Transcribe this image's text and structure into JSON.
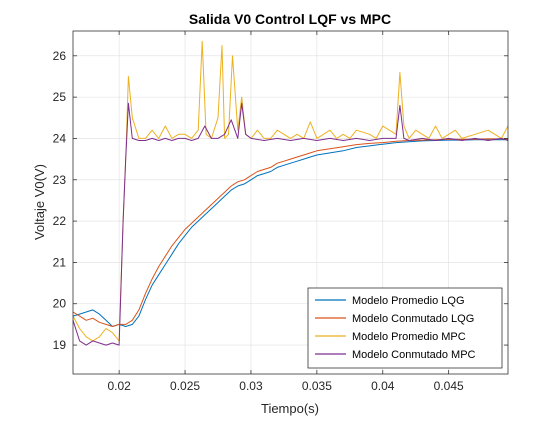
{
  "chart_data": {
    "type": "line",
    "title": "Salida V0 Control LQF vs MPC",
    "xlabel": "Tiempo(s)",
    "ylabel": "Voltaje V0(V)",
    "xlim": [
      0.0165,
      0.0495
    ],
    "ylim": [
      18.3,
      26.6
    ],
    "xticks": [
      0.02,
      0.025,
      0.03,
      0.035,
      0.04,
      0.045
    ],
    "xtick_labels": [
      "0.02",
      "0.025",
      "0.03",
      "0.035",
      "0.04",
      "0.045"
    ],
    "yticks": [
      19,
      20,
      21,
      22,
      23,
      24,
      25,
      26
    ],
    "ytick_labels": [
      "19",
      "20",
      "21",
      "22",
      "23",
      "24",
      "25",
      "26"
    ],
    "grid": true,
    "legend_position": "bottom-right",
    "series": [
      {
        "name": "Modelo Promedio LQG",
        "color": "#0072BD",
        "x": [
          0.0165,
          0.017,
          0.0175,
          0.018,
          0.0185,
          0.019,
          0.0195,
          0.02,
          0.0205,
          0.021,
          0.0215,
          0.022,
          0.0225,
          0.023,
          0.0235,
          0.024,
          0.0245,
          0.025,
          0.0255,
          0.026,
          0.0265,
          0.027,
          0.0275,
          0.028,
          0.0285,
          0.029,
          0.0295,
          0.03,
          0.0305,
          0.031,
          0.0315,
          0.032,
          0.0325,
          0.033,
          0.0335,
          0.034,
          0.0345,
          0.035,
          0.036,
          0.037,
          0.038,
          0.039,
          0.04,
          0.041,
          0.042,
          0.043,
          0.044,
          0.045,
          0.046,
          0.047,
          0.048,
          0.049,
          0.0495
        ],
        "y": [
          19.7,
          19.75,
          19.8,
          19.85,
          19.75,
          19.6,
          19.45,
          19.5,
          19.45,
          19.5,
          19.7,
          20.1,
          20.45,
          20.7,
          20.95,
          21.2,
          21.45,
          21.65,
          21.85,
          22.0,
          22.15,
          22.3,
          22.45,
          22.6,
          22.75,
          22.85,
          22.9,
          23.0,
          23.1,
          23.15,
          23.2,
          23.3,
          23.35,
          23.4,
          23.45,
          23.5,
          23.55,
          23.6,
          23.65,
          23.7,
          23.78,
          23.82,
          23.86,
          23.9,
          23.92,
          23.94,
          23.95,
          23.96,
          23.96,
          23.97,
          23.97,
          23.97,
          23.97
        ]
      },
      {
        "name": "Modelo Conmutado LQG",
        "color": "#D95319",
        "x": [
          0.0165,
          0.017,
          0.0175,
          0.018,
          0.0185,
          0.019,
          0.0195,
          0.02,
          0.0205,
          0.021,
          0.0215,
          0.022,
          0.0225,
          0.023,
          0.0235,
          0.024,
          0.0245,
          0.025,
          0.0255,
          0.026,
          0.0265,
          0.027,
          0.0275,
          0.028,
          0.0285,
          0.029,
          0.0295,
          0.03,
          0.0305,
          0.031,
          0.0315,
          0.032,
          0.0325,
          0.033,
          0.0335,
          0.034,
          0.0345,
          0.035,
          0.036,
          0.037,
          0.038,
          0.039,
          0.04,
          0.041,
          0.042,
          0.043,
          0.044,
          0.045,
          0.046,
          0.047,
          0.048,
          0.049,
          0.0495
        ],
        "y": [
          19.8,
          19.7,
          19.6,
          19.65,
          19.55,
          19.5,
          19.45,
          19.5,
          19.5,
          19.6,
          19.85,
          20.25,
          20.6,
          20.9,
          21.15,
          21.4,
          21.6,
          21.8,
          21.95,
          22.1,
          22.25,
          22.4,
          22.55,
          22.7,
          22.85,
          22.95,
          23.0,
          23.1,
          23.2,
          23.25,
          23.3,
          23.4,
          23.45,
          23.5,
          23.55,
          23.6,
          23.65,
          23.7,
          23.75,
          23.8,
          23.85,
          23.88,
          23.9,
          23.93,
          23.95,
          23.96,
          23.97,
          23.98,
          23.98,
          23.98,
          23.99,
          23.99,
          23.99
        ]
      },
      {
        "name": "Modelo Promedio MPC",
        "color": "#EDB120",
        "x": [
          0.0165,
          0.017,
          0.0175,
          0.018,
          0.0185,
          0.019,
          0.0195,
          0.02,
          0.0203,
          0.0205,
          0.0207,
          0.021,
          0.0215,
          0.022,
          0.0225,
          0.023,
          0.0235,
          0.024,
          0.0245,
          0.025,
          0.0255,
          0.026,
          0.0263,
          0.0266,
          0.027,
          0.0275,
          0.0278,
          0.028,
          0.0283,
          0.0286,
          0.029,
          0.0293,
          0.0296,
          0.03,
          0.0305,
          0.031,
          0.0315,
          0.032,
          0.0325,
          0.033,
          0.0335,
          0.034,
          0.0345,
          0.035,
          0.0355,
          0.036,
          0.0365,
          0.037,
          0.0375,
          0.038,
          0.039,
          0.0395,
          0.04,
          0.041,
          0.0413,
          0.0416,
          0.042,
          0.0425,
          0.043,
          0.0435,
          0.044,
          0.0445,
          0.045,
          0.0455,
          0.046,
          0.047,
          0.048,
          0.049,
          0.0495
        ],
        "y": [
          19.7,
          19.4,
          19.2,
          19.1,
          19.2,
          19.4,
          19.3,
          19.1,
          22.0,
          23.5,
          25.5,
          24.5,
          24.0,
          24.0,
          24.2,
          24.0,
          24.3,
          24.0,
          24.1,
          24.1,
          24.0,
          24.2,
          26.35,
          24.1,
          24.0,
          24.5,
          26.25,
          24.0,
          24.1,
          26.0,
          24.2,
          25.0,
          24.1,
          24.0,
          24.2,
          24.0,
          24.0,
          24.2,
          24.1,
          24.0,
          24.1,
          24.0,
          24.4,
          24.0,
          24.1,
          24.2,
          24.0,
          24.1,
          24.0,
          24.2,
          24.1,
          24.0,
          24.3,
          24.1,
          25.6,
          24.3,
          24.0,
          24.2,
          24.1,
          24.0,
          24.3,
          24.0,
          24.1,
          24.2,
          24.0,
          24.1,
          24.2,
          24.0,
          24.3
        ]
      },
      {
        "name": "Modelo Conmutado MPC",
        "color": "#7E2F8E",
        "x": [
          0.0165,
          0.017,
          0.0175,
          0.018,
          0.0185,
          0.019,
          0.0195,
          0.02,
          0.0203,
          0.0205,
          0.0207,
          0.021,
          0.0215,
          0.022,
          0.0225,
          0.023,
          0.0235,
          0.024,
          0.0245,
          0.025,
          0.0255,
          0.026,
          0.0265,
          0.027,
          0.0275,
          0.028,
          0.0285,
          0.029,
          0.0293,
          0.0296,
          0.03,
          0.031,
          0.032,
          0.033,
          0.034,
          0.035,
          0.036,
          0.037,
          0.038,
          0.039,
          0.04,
          0.041,
          0.0413,
          0.0416,
          0.042,
          0.043,
          0.044,
          0.045,
          0.046,
          0.047,
          0.048,
          0.049,
          0.0495
        ],
        "y": [
          19.6,
          19.1,
          19.0,
          19.1,
          19.05,
          19.0,
          19.05,
          19.0,
          22.0,
          23.5,
          24.85,
          24.0,
          23.95,
          23.95,
          24.0,
          23.95,
          24.0,
          23.95,
          24.0,
          24.0,
          23.95,
          24.0,
          24.3,
          24.0,
          24.0,
          24.1,
          24.45,
          24.0,
          24.85,
          24.1,
          24.0,
          23.95,
          24.0,
          23.95,
          24.0,
          23.95,
          24.0,
          23.95,
          24.0,
          23.95,
          24.0,
          24.0,
          24.8,
          24.0,
          23.95,
          24.0,
          23.95,
          24.0,
          23.95,
          24.0,
          23.95,
          24.0,
          23.95
        ]
      }
    ]
  }
}
